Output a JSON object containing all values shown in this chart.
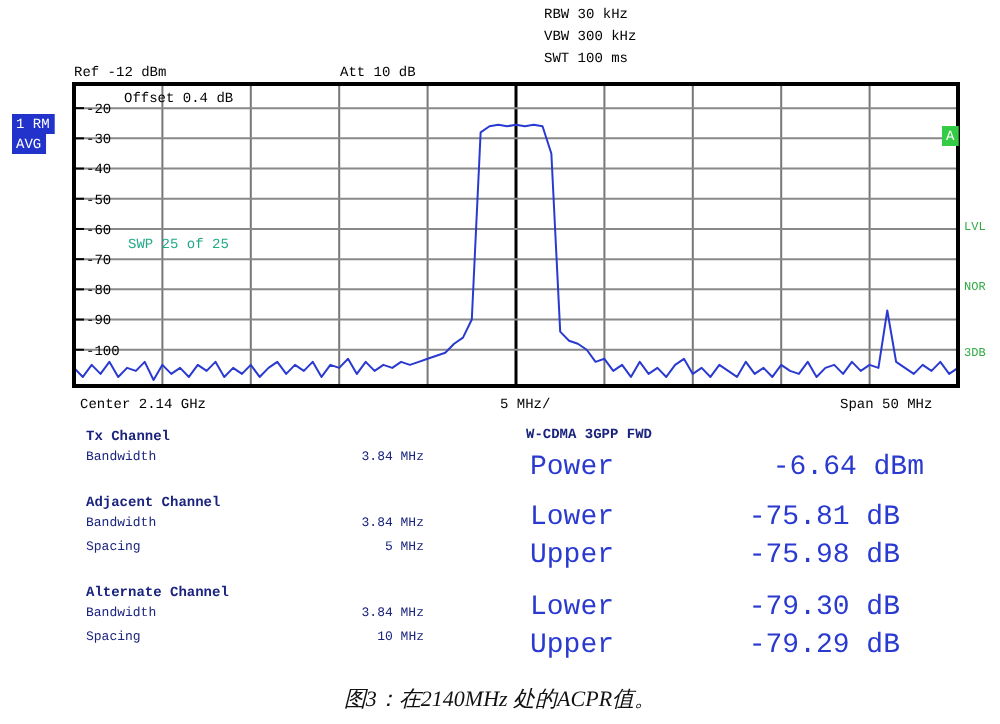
{
  "chart_data": {
    "type": "line",
    "annotations": [
      "Ref -12 dBm",
      "Att 10 dB",
      "RBW 30 kHz",
      "VBW 300 kHz",
      "SWT 100 ms",
      "Offset 0.4 dB",
      "1 RM",
      "AVG",
      "SWP 25 of 25",
      "A",
      "LVL",
      "NOR",
      "3DB",
      "Center 2.14 GHz",
      "5 MHz/",
      "Span 50 MHz",
      "Tx Channel",
      "Bandwidth",
      "3.84 MHz",
      "Adjacent Channel",
      "Bandwidth",
      "3.84 MHz",
      "Spacing",
      "5 MHz",
      "Alternate Channel",
      "Bandwidth",
      "3.84 MHz",
      "Spacing",
      "10 MHz",
      "W-CDMA 3GPP FWD",
      "Power",
      "-6.64 dBm",
      "Lower",
      "-75.81 dB",
      "Upper",
      "-75.98 dB",
      "Lower",
      "-79.30 dB",
      "Upper",
      "-79.29 dB",
      "图3：在2140MHz 处的ACPR值。"
    ],
    "categories": [
      null,
      null,
      null,
      null,
      null,
      null,
      null,
      null,
      null,
      null,
      null,
      null,
      null,
      null,
      null,
      null,
      null,
      null,
      null,
      null,
      null,
      null,
      null,
      null,
      null,
      null,
      null,
      null,
      null,
      null,
      null,
      null,
      null,
      null,
      null,
      null,
      null,
      null,
      null,
      null,
      null,
      null,
      null,
      null,
      null,
      null,
      null,
      null,
      null,
      null,
      null,
      null,
      null,
      null,
      null,
      null,
      null,
      null,
      null,
      null,
      null,
      null,
      null,
      null,
      null,
      null,
      null,
      null,
      null,
      null,
      null,
      null,
      null,
      null,
      null,
      null,
      null,
      null,
      null,
      null,
      null,
      null,
      null,
      null,
      null,
      null,
      null,
      null,
      null,
      null,
      null,
      null,
      null,
      null,
      null,
      null,
      null,
      null,
      null,
      null,
      null
    ],
    "values": [
      -106,
      -109,
      -105,
      -108,
      -104,
      -109,
      -106,
      -107,
      -104,
      -110,
      -105,
      -108,
      -106,
      -109,
      -105,
      -107,
      -104,
      -109,
      -106,
      -108,
      -105,
      -109,
      -106,
      -104,
      -108,
      -105,
      -107,
      -104,
      -109,
      -105,
      -106,
      -103,
      -108,
      -104,
      -107,
      -105,
      -106,
      -104,
      -105,
      -104,
      -103,
      -102,
      -101,
      -98,
      -96,
      -90,
      -28,
      -26,
      -25.5,
      -26,
      -25.5,
      -26,
      -25.5,
      -26,
      -35,
      -94,
      -97,
      -98,
      -100,
      -104,
      -103,
      -107,
      -105,
      -109,
      -104,
      -108,
      -106,
      -109,
      -105,
      -103,
      -108,
      -106,
      -109,
      -105,
      -107,
      -109,
      -104,
      -108,
      -106,
      -109,
      -105,
      -107,
      -108,
      -104,
      -109,
      -106,
      -105,
      -108,
      -104,
      -107,
      -105,
      -106,
      -87,
      -104,
      -106,
      -108,
      -105,
      -107,
      -104,
      -108,
      -106
    ],
    "color": "#2a3ad0",
    "ylim": [
      -112,
      -12
    ],
    "yticks": [
      -100,
      -90,
      -80,
      -70,
      -60,
      -50,
      -40,
      -30,
      -20
    ],
    "tick_labels": "y",
    "grid": true
  }
}
